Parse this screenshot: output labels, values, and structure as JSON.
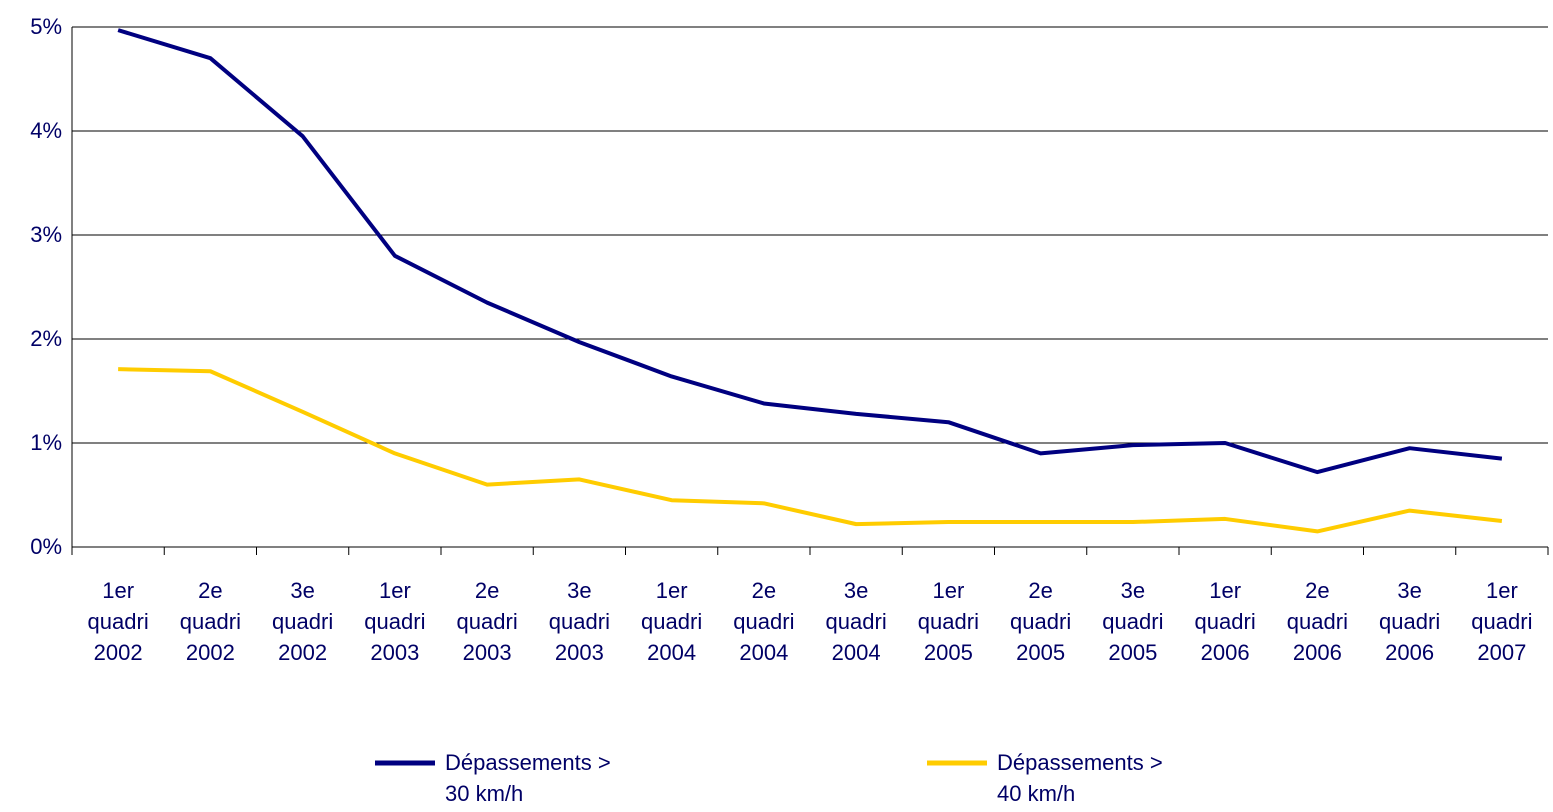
{
  "chart_data": {
    "type": "line",
    "categories": [
      "1er quadri 2002",
      "2e quadri 2002",
      "3e quadri 2002",
      "1er quadri 2003",
      "2e quadri 2003",
      "3e quadri 2003",
      "1er quadri 2004",
      "2e quadri 2004",
      "3e quadri 2004",
      "1er quadri 2005",
      "2e quadri 2005",
      "3e quadri 2005",
      "1er quadri 2006",
      "2e quadri 2006",
      "3e quadri 2006",
      "1er quadri 2007"
    ],
    "series": [
      {
        "name": "Dépassements > 30 km/h",
        "color": "#000080",
        "values": [
          4.97,
          4.7,
          3.95,
          2.8,
          2.35,
          1.97,
          1.64,
          1.38,
          1.28,
          1.2,
          0.9,
          0.98,
          1.0,
          0.72,
          0.95,
          0.85
        ]
      },
      {
        "name": "Dépassements > 40 km/h",
        "color": "#ffcc00",
        "values": [
          1.71,
          1.69,
          1.3,
          0.9,
          0.6,
          0.65,
          0.45,
          0.42,
          0.22,
          0.24,
          0.24,
          0.24,
          0.27,
          0.15,
          0.35,
          0.25
        ]
      }
    ],
    "ylim": [
      0,
      5
    ],
    "yticks": [
      {
        "value": 0,
        "label": "0%"
      },
      {
        "value": 1,
        "label": "1%"
      },
      {
        "value": 2,
        "label": "2%"
      },
      {
        "value": 3,
        "label": "3%"
      },
      {
        "value": 4,
        "label": "4%"
      },
      {
        "value": 5,
        "label": "5%"
      }
    ],
    "grid": true,
    "legend": "bottom"
  }
}
